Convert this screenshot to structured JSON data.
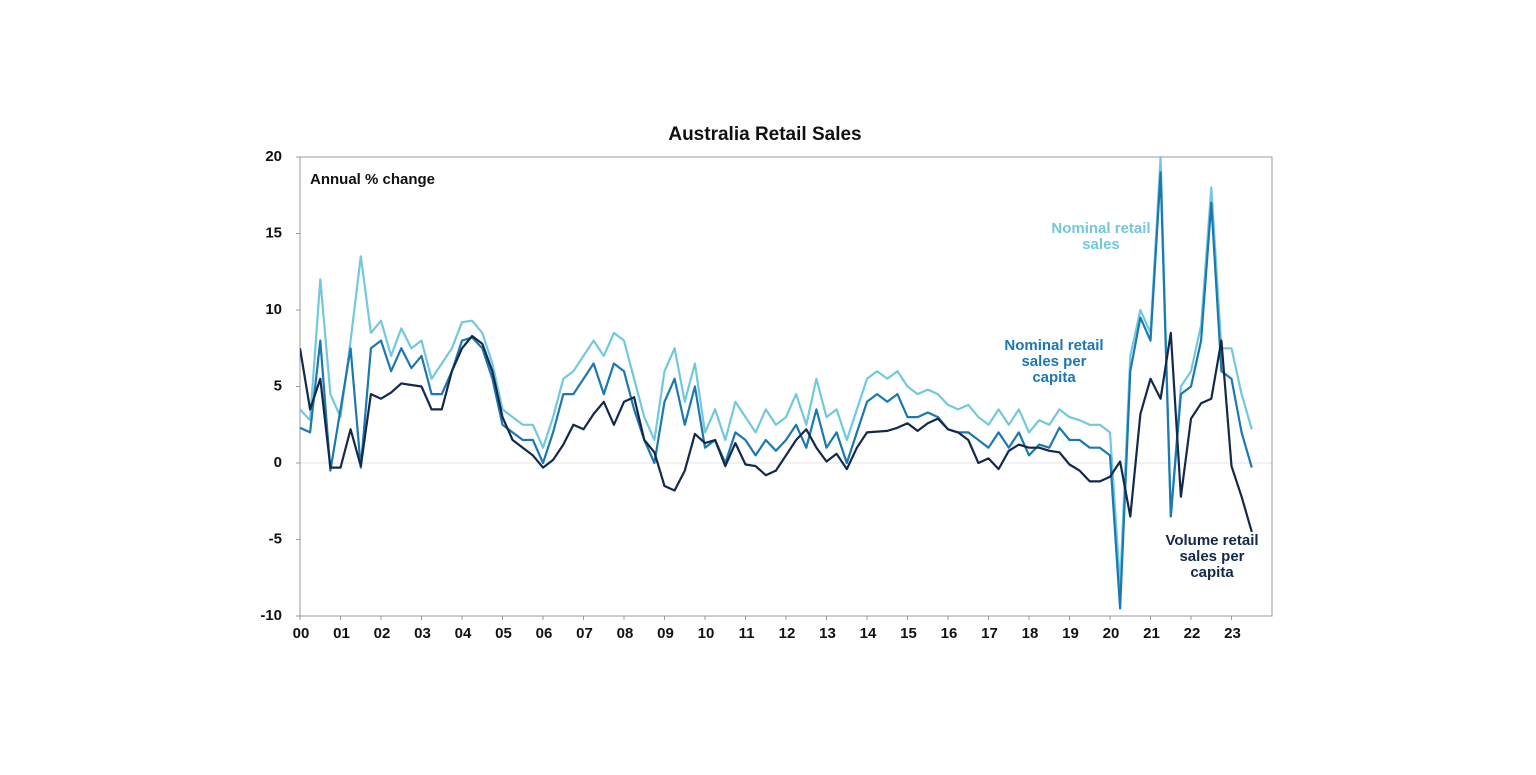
{
  "chart_data": {
    "type": "line",
    "title": "Australia Retail Sales",
    "annotation": "Annual % change",
    "x": [
      2000,
      2000.25,
      2000.5,
      2000.75,
      2001,
      2001.25,
      2001.5,
      2001.75,
      2002,
      2002.25,
      2002.5,
      2002.75,
      2003,
      2003.25,
      2003.5,
      2003.75,
      2004,
      2004.25,
      2004.5,
      2004.75,
      2005,
      2005.25,
      2005.5,
      2005.75,
      2006,
      2006.25,
      2006.5,
      2006.75,
      2007,
      2007.25,
      2007.5,
      2007.75,
      2008,
      2008.25,
      2008.5,
      2008.75,
      2009,
      2009.25,
      2009.5,
      2009.75,
      2010,
      2010.25,
      2010.5,
      2010.75,
      2011,
      2011.25,
      2011.5,
      2011.75,
      2012,
      2012.25,
      2012.5,
      2012.75,
      2013,
      2013.25,
      2013.5,
      2013.75,
      2014,
      2014.25,
      2014.5,
      2014.75,
      2015,
      2015.25,
      2015.5,
      2015.75,
      2016,
      2016.25,
      2016.5,
      2016.75,
      2017,
      2017.25,
      2017.5,
      2017.75,
      2018,
      2018.25,
      2018.5,
      2018.75,
      2019,
      2019.25,
      2019.5,
      2019.75,
      2020,
      2020.25,
      2020.5,
      2020.75,
      2021,
      2021.25,
      2021.5,
      2021.75,
      2022,
      2022.25,
      2022.5,
      2022.75,
      2023,
      2023.25,
      2023.5
    ],
    "series": [
      {
        "name": "Nominal retail sales",
        "color": "#72c8dc",
        "values": [
          3.5,
          2.8,
          12,
          4.5,
          3,
          8,
          13.5,
          8.5,
          9.3,
          7,
          8.8,
          7.5,
          8,
          5.5,
          6.5,
          7.5,
          9.2,
          9.3,
          8.5,
          6.5,
          3.5,
          3,
          2.5,
          2.5,
          1,
          3,
          5.5,
          6,
          7,
          8,
          7,
          8.5,
          8,
          5.5,
          3,
          1.5,
          6,
          7.5,
          4,
          6.5,
          2,
          3.5,
          1.5,
          4,
          3,
          2,
          3.5,
          2.5,
          3,
          4.5,
          2.5,
          5.5,
          3,
          3.5,
          1.5,
          3.5,
          5.5,
          6,
          5.5,
          6,
          5,
          4.5,
          4.8,
          4.5,
          3.8,
          3.5,
          3.8,
          3,
          2.5,
          3.5,
          2.5,
          3.5,
          2,
          2.8,
          2.5,
          3.5,
          3,
          2.8,
          2.5,
          2.5,
          2,
          -8,
          7,
          10,
          8.5,
          20,
          -3.5,
          5,
          6,
          9,
          18,
          7.5,
          7.5,
          4.5,
          2.2
        ]
      },
      {
        "name": "Nominal retail sales per capita",
        "color": "#1b78b0",
        "values": [
          2.3,
          2,
          8,
          -0.5,
          3.5,
          7.5,
          -0.3,
          7.5,
          8,
          6,
          7.5,
          6.2,
          7,
          4.5,
          4.5,
          6,
          8,
          8.2,
          7.5,
          5.5,
          2.5,
          2,
          1.5,
          1.5,
          0,
          2,
          4.5,
          4.5,
          5.5,
          6.5,
          4.5,
          6.5,
          6,
          3.5,
          1.5,
          0,
          4,
          5.5,
          2.5,
          5,
          1,
          1.5,
          0,
          2,
          1.5,
          0.5,
          1.5,
          0.8,
          1.5,
          2.5,
          1,
          3.5,
          1,
          2,
          0,
          2,
          4,
          4.5,
          4,
          4.5,
          3,
          3,
          3.3,
          3,
          2.2,
          2,
          2,
          1.5,
          1,
          2,
          1,
          2,
          0.5,
          1.2,
          1,
          2.3,
          1.5,
          1.5,
          1,
          1,
          0.5,
          -9.5,
          6,
          9.5,
          8,
          19,
          -3.5,
          4.5,
          5,
          8,
          17,
          6,
          5.5,
          2,
          -0.3
        ]
      },
      {
        "name": "Volume retail sales per capita",
        "color": "#13294b",
        "values": [
          7.5,
          3.5,
          5.5,
          -0.3,
          -0.3,
          2.2,
          -0.2,
          4.5,
          4.2,
          4.6,
          5.2,
          5.1,
          5,
          3.5,
          3.5,
          6,
          7.5,
          8.3,
          7.8,
          6,
          3,
          1.5,
          1,
          0.5,
          -0.3,
          0.2,
          1.2,
          2.5,
          2.2,
          3.2,
          4,
          2.5,
          4,
          4.3,
          1.5,
          0.7,
          -1.5,
          -1.8,
          -0.5,
          1.9,
          1.3,
          1.5,
          -0.2,
          1.3,
          -0.1,
          -0.2,
          -0.8,
          -0.5,
          0.5,
          1.5,
          2.2,
          1,
          0.1,
          0.6,
          -0.4,
          1,
          2,
          2.05,
          2.1,
          2.3,
          2.6,
          2.1,
          2.6,
          2.9,
          2.2,
          2,
          1.5,
          0,
          0.3,
          -0.4,
          0.8,
          1.2,
          1,
          1,
          0.8,
          0.7,
          -0.1,
          -0.5,
          -1.2,
          -1.2,
          -0.9,
          0.1,
          -3.5,
          3.2,
          5.5,
          4.2,
          8.5,
          -2.2,
          2.9,
          3.9,
          4.2,
          8,
          -0.2,
          -2.2,
          -4.5
        ]
      }
    ],
    "xlim": [
      2000,
      2024
    ],
    "xticks": [
      {
        "value": 2000,
        "label": "00"
      },
      {
        "value": 2001,
        "label": "01"
      },
      {
        "value": 2002,
        "label": "02"
      },
      {
        "value": 2003,
        "label": "03"
      },
      {
        "value": 2004,
        "label": "04"
      },
      {
        "value": 2005,
        "label": "05"
      },
      {
        "value": 2006,
        "label": "06"
      },
      {
        "value": 2007,
        "label": "07"
      },
      {
        "value": 2008,
        "label": "08"
      },
      {
        "value": 2009,
        "label": "09"
      },
      {
        "value": 2010,
        "label": "10"
      },
      {
        "value": 2011,
        "label": "11"
      },
      {
        "value": 2012,
        "label": "12"
      },
      {
        "value": 2013,
        "label": "13"
      },
      {
        "value": 2014,
        "label": "14"
      },
      {
        "value": 2015,
        "label": "15"
      },
      {
        "value": 2016,
        "label": "16"
      },
      {
        "value": 2017,
        "label": "17"
      },
      {
        "value": 2018,
        "label": "18"
      },
      {
        "value": 2019,
        "label": "19"
      },
      {
        "value": 2020,
        "label": "20"
      },
      {
        "value": 2021,
        "label": "21"
      },
      {
        "value": 2022,
        "label": "22"
      },
      {
        "value": 2023,
        "label": "23"
      }
    ],
    "ylim": [
      -10,
      20
    ],
    "yticks": [
      20,
      15,
      10,
      5,
      0,
      -5,
      -10
    ],
    "grid": false,
    "zero_line": true
  }
}
